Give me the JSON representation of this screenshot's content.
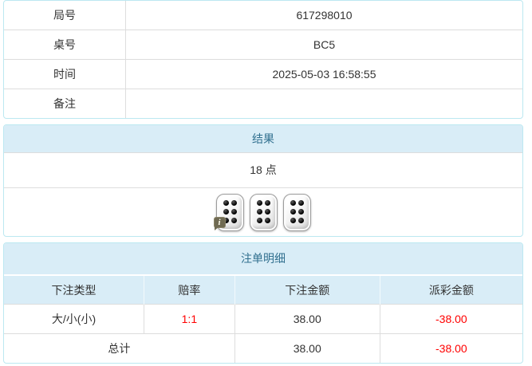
{
  "colors": {
    "panel_border": "#bce8f1",
    "panel_heading_bg": "#d9edf7",
    "panel_heading_text": "#31708f",
    "row_divider": "#dddddd",
    "body_text": "#333333",
    "negative_text": "#ff0000",
    "info_badge_bg": "#6f6a52"
  },
  "info_table": {
    "rows": [
      {
        "label": "局号",
        "value": "617298010"
      },
      {
        "label": "桌号",
        "value": "BC5"
      },
      {
        "label": "时间",
        "value": "2025-05-03 16:58:55"
      },
      {
        "label": "备注",
        "value": ""
      }
    ]
  },
  "result_panel": {
    "title": "结果",
    "points": "18 点",
    "dice": [
      6,
      6,
      6
    ],
    "info_badge": "i"
  },
  "bet_details_panel": {
    "title": "注单明细",
    "columns": [
      "下注类型",
      "赔率",
      "下注金额",
      "派彩金额"
    ],
    "rows": [
      {
        "bet_type": "大/小(小)",
        "odds": "1:1",
        "bet_amount": "38.00",
        "payout": "-38.00"
      }
    ],
    "total": {
      "label": "总计",
      "bet_amount": "38.00",
      "payout": "-38.00"
    }
  }
}
